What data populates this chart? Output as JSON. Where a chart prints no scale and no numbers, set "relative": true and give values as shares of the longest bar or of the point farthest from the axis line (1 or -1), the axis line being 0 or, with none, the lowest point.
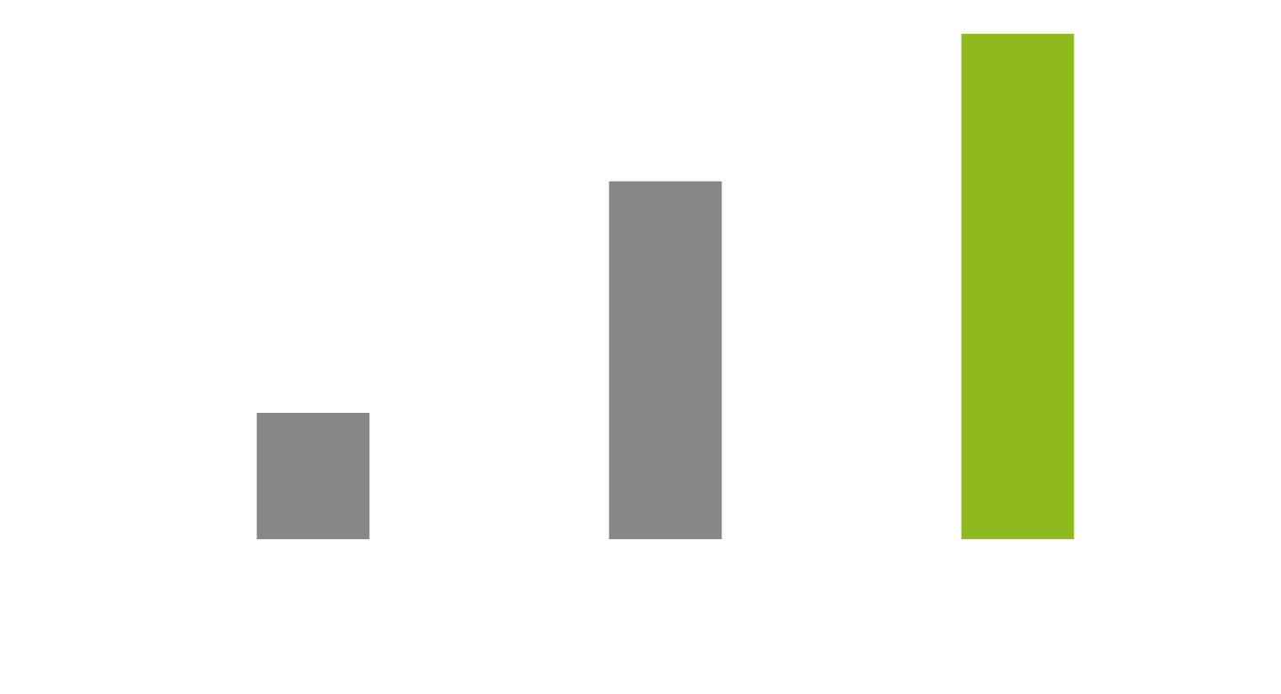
{
  "chart_data": {
    "type": "bar",
    "relative": true,
    "categories": [
      null,
      null,
      null
    ],
    "values": [
      0.25,
      0.708,
      1
    ],
    "colors": [
      "#878787",
      "#878787",
      "#8fba1e"
    ]
  }
}
